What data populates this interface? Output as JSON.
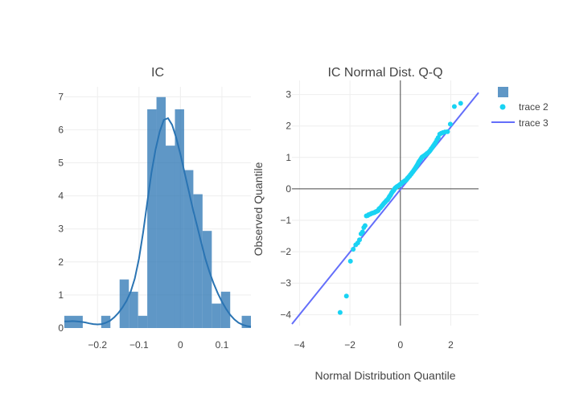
{
  "chart_data": [
    {
      "type": "histogram",
      "title": "IC",
      "xlabel": "",
      "ylabel": "",
      "xlim": [
        -0.28,
        0.17
      ],
      "ylim": [
        0,
        7.3
      ],
      "xticks": [
        -0.2,
        -0.1,
        0,
        0.1
      ],
      "xtick_labels": [
        "−0.2",
        "−0.1",
        "0",
        "0.1"
      ],
      "yticks": [
        0,
        1,
        2,
        3,
        4,
        5,
        6,
        7
      ],
      "ytick_labels": [
        "0",
        "1",
        "2",
        "3",
        "4",
        "5",
        "6",
        "7"
      ],
      "bar_color": "#2a74b3",
      "bar_opacity": 0.75,
      "bins": [
        {
          "x0": -0.28,
          "x1": -0.2356,
          "value": 0.37
        },
        {
          "x0": -0.1911,
          "x1": -0.1689,
          "value": 0.37
        },
        {
          "x0": -0.1467,
          "x1": -0.1244,
          "value": 1.47
        },
        {
          "x0": -0.1244,
          "x1": -0.1022,
          "value": 1.1
        },
        {
          "x0": -0.1022,
          "x1": -0.08,
          "value": 0.37
        },
        {
          "x0": -0.08,
          "x1": -0.0578,
          "value": 6.62
        },
        {
          "x0": -0.0578,
          "x1": -0.0356,
          "value": 6.99
        },
        {
          "x0": -0.0356,
          "x1": -0.0133,
          "value": 5.52
        },
        {
          "x0": -0.0133,
          "x1": 0.0089,
          "value": 6.62
        },
        {
          "x0": 0.0089,
          "x1": 0.0311,
          "value": 4.78
        },
        {
          "x0": 0.0311,
          "x1": 0.0533,
          "value": 4.05
        },
        {
          "x0": 0.0533,
          "x1": 0.0756,
          "value": 2.94
        },
        {
          "x0": 0.0756,
          "x1": 0.0978,
          "value": 0.74
        },
        {
          "x0": 0.0978,
          "x1": 0.12,
          "value": 1.1
        },
        {
          "x0": 0.1478,
          "x1": 0.17,
          "value": 0.37
        }
      ],
      "kde": {
        "color": "#2a74b3",
        "x": [
          -0.28,
          -0.27,
          -0.26,
          -0.25,
          -0.24,
          -0.23,
          -0.22,
          -0.21,
          -0.2,
          -0.19,
          -0.18,
          -0.17,
          -0.16,
          -0.15,
          -0.14,
          -0.13,
          -0.12,
          -0.11,
          -0.1,
          -0.09,
          -0.08,
          -0.07,
          -0.06,
          -0.05,
          -0.04,
          -0.03,
          -0.02,
          -0.01,
          0,
          0.01,
          0.02,
          0.03,
          0.04,
          0.05,
          0.06,
          0.07,
          0.08,
          0.09,
          0.1,
          0.11,
          0.12,
          0.13,
          0.14,
          0.15,
          0.16,
          0.17
        ],
        "y": [
          0.2,
          0.2,
          0.21,
          0.2,
          0.19,
          0.17,
          0.14,
          0.12,
          0.11,
          0.12,
          0.16,
          0.22,
          0.32,
          0.45,
          0.62,
          0.82,
          1.1,
          1.5,
          2.1,
          2.9,
          3.8,
          4.7,
          5.4,
          5.95,
          6.3,
          6.35,
          6.15,
          5.75,
          5.25,
          4.7,
          4.15,
          3.6,
          3.1,
          2.6,
          2.1,
          1.7,
          1.35,
          1.05,
          0.8,
          0.58,
          0.4,
          0.26,
          0.16,
          0.1,
          0.06,
          0.04
        ]
      }
    },
    {
      "type": "scatter",
      "title": "IC Normal Dist. Q-Q",
      "xlabel": "Normal Distribution Quantile",
      "ylabel": "Observed Quantile",
      "xlim": [
        -4.3,
        3.1
      ],
      "ylim": [
        -4.35,
        3.45
      ],
      "xticks": [
        -4,
        -2,
        0,
        2
      ],
      "xtick_labels": [
        "−4",
        "−2",
        "0",
        "2"
      ],
      "yticks": [
        -4,
        -3,
        -2,
        -1,
        0,
        1,
        2,
        3
      ],
      "ytick_labels": [
        "−4",
        "−3",
        "−2",
        "−1",
        "0",
        "1",
        "2",
        "3"
      ],
      "legend_position": "top-right",
      "legend": [
        {
          "name": "",
          "symbol": "square",
          "color": "#2a74b3"
        },
        {
          "name": "trace 2",
          "symbol": "dot",
          "color": "#19d3f3"
        },
        {
          "name": "trace 3",
          "symbol": "line",
          "color": "#636efa"
        }
      ],
      "series": [
        {
          "name": "trace 2",
          "mode": "markers",
          "color": "#19d3f3",
          "x": [
            -2.39,
            -2.14,
            -1.98,
            -1.87,
            -1.77,
            -1.69,
            -1.62,
            -1.56,
            -1.5,
            -1.45,
            -1.4,
            -1.35,
            -1.3,
            -1.26,
            -1.22,
            -1.18,
            -1.14,
            -1.1,
            -1.06,
            -1.02,
            -0.99,
            -0.95,
            -0.92,
            -0.88,
            -0.85,
            -0.82,
            -0.79,
            -0.75,
            -0.72,
            -0.69,
            -0.66,
            -0.63,
            -0.6,
            -0.57,
            -0.54,
            -0.51,
            -0.48,
            -0.45,
            -0.43,
            -0.4,
            -0.37,
            -0.34,
            -0.31,
            -0.28,
            -0.26,
            -0.23,
            -0.2,
            -0.17,
            -0.15,
            -0.12,
            -0.09,
            -0.06,
            -0.04,
            -0.01,
            0.01,
            0.04,
            0.06,
            0.09,
            0.12,
            0.15,
            0.17,
            0.2,
            0.23,
            0.26,
            0.28,
            0.31,
            0.34,
            0.37,
            0.4,
            0.43,
            0.45,
            0.48,
            0.51,
            0.54,
            0.57,
            0.6,
            0.63,
            0.66,
            0.69,
            0.72,
            0.75,
            0.79,
            0.82,
            0.85,
            0.88,
            0.92,
            0.95,
            0.99,
            1.02,
            1.06,
            1.1,
            1.14,
            1.18,
            1.22,
            1.26,
            1.3,
            1.35,
            1.4,
            1.45,
            1.5,
            1.56,
            1.62,
            1.69,
            1.77,
            1.87,
            1.98,
            2.14,
            2.39
          ],
          "y": [
            -3.93,
            -3.41,
            -2.3,
            -1.92,
            -1.78,
            -1.72,
            -1.62,
            -1.43,
            -1.37,
            -1.23,
            -1.17,
            -0.86,
            -0.85,
            -0.82,
            -0.81,
            -0.8,
            -0.78,
            -0.77,
            -0.76,
            -0.75,
            -0.73,
            -0.72,
            -0.71,
            -0.69,
            -0.64,
            -0.62,
            -0.6,
            -0.56,
            -0.53,
            -0.5,
            -0.47,
            -0.44,
            -0.42,
            -0.39,
            -0.36,
            -0.35,
            -0.31,
            -0.27,
            -0.24,
            -0.21,
            -0.17,
            -0.12,
            -0.09,
            -0.06,
            -0.04,
            0.0,
            0.03,
            0.05,
            0.06,
            0.08,
            0.09,
            0.11,
            0.12,
            0.14,
            0.15,
            0.17,
            0.19,
            0.21,
            0.22,
            0.24,
            0.25,
            0.27,
            0.28,
            0.31,
            0.34,
            0.36,
            0.39,
            0.41,
            0.45,
            0.47,
            0.5,
            0.53,
            0.56,
            0.6,
            0.63,
            0.67,
            0.71,
            0.75,
            0.79,
            0.84,
            0.88,
            0.92,
            0.96,
            1.0,
            1.02,
            1.04,
            1.06,
            1.08,
            1.1,
            1.13,
            1.15,
            1.18,
            1.22,
            1.27,
            1.31,
            1.36,
            1.42,
            1.48,
            1.56,
            1.63,
            1.74,
            1.77,
            1.79,
            1.81,
            1.82,
            2.06,
            2.62,
            2.72
          ]
        },
        {
          "name": "trace 3",
          "mode": "lines",
          "color": "#636efa",
          "x": [
            -4.3,
            3.1
          ],
          "y": [
            -4.3,
            3.06
          ]
        }
      ]
    }
  ]
}
